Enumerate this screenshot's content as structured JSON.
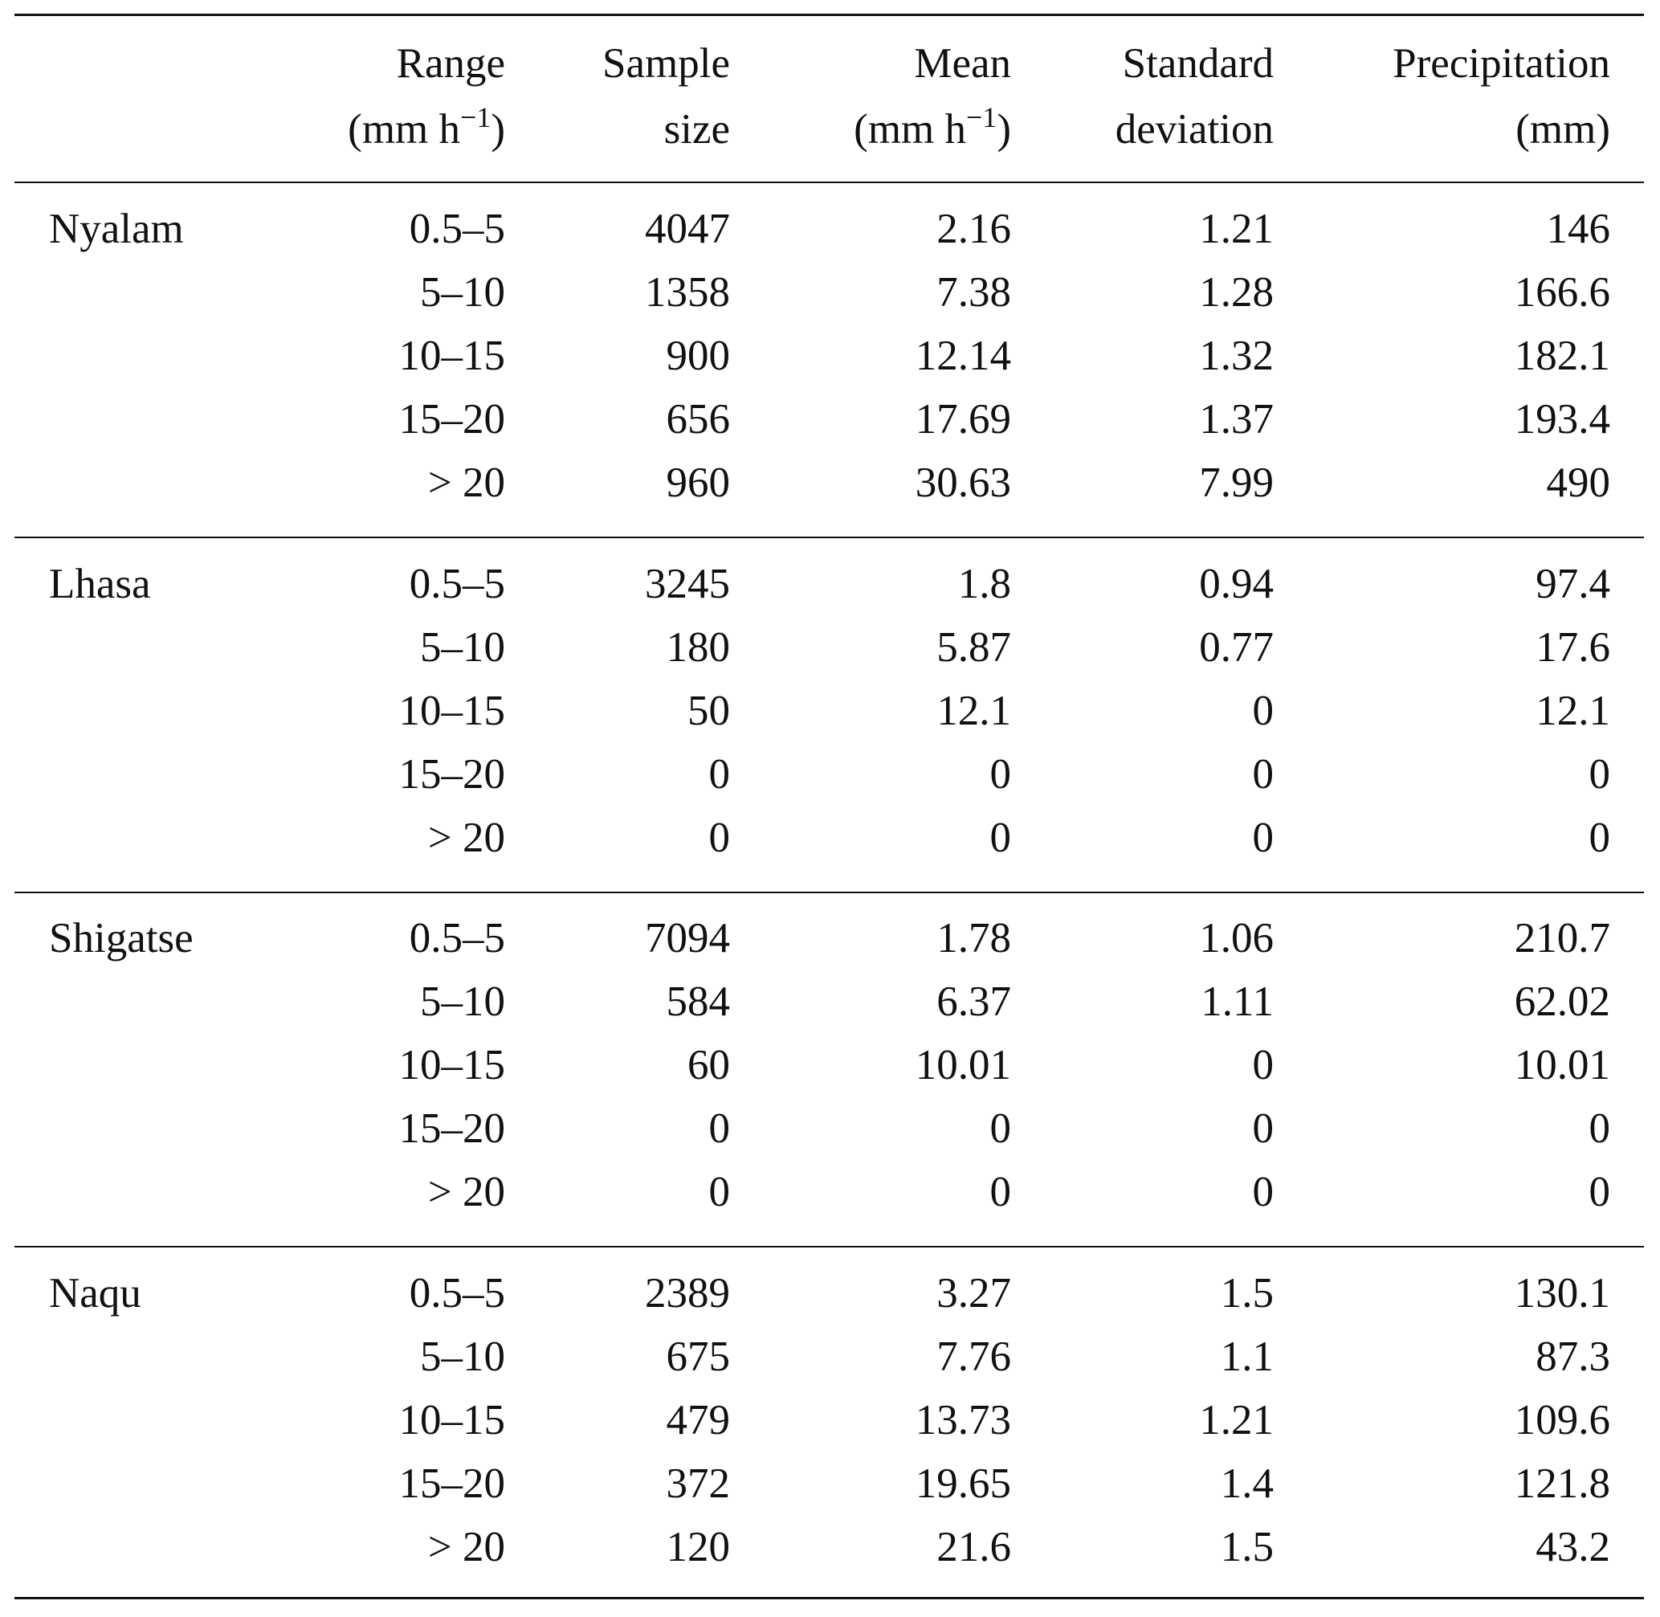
{
  "table": {
    "columns": [
      {
        "lines": [
          [
            {
              "text": "Range"
            }
          ],
          [
            {
              "text": "(mm h"
            },
            {
              "text": "−1",
              "sup": true
            },
            {
              "text": ")"
            }
          ]
        ]
      },
      {
        "lines": [
          [
            {
              "text": "Sample"
            }
          ],
          [
            {
              "text": "size"
            }
          ]
        ]
      },
      {
        "lines": [
          [
            {
              "text": "Mean"
            }
          ],
          [
            {
              "text": "(mm h"
            },
            {
              "text": "−1",
              "sup": true
            },
            {
              "text": ")"
            }
          ]
        ]
      },
      {
        "lines": [
          [
            {
              "text": "Standard"
            }
          ],
          [
            {
              "text": "deviation"
            }
          ]
        ]
      },
      {
        "lines": [
          [
            {
              "text": "Precipitation"
            }
          ],
          [
            {
              "text": "(mm)"
            }
          ]
        ]
      }
    ],
    "groups": [
      {
        "name": "Nyalam",
        "rows": [
          [
            "0.5–5",
            "4047",
            "2.16",
            "1.21",
            "146"
          ],
          [
            "5–10",
            "1358",
            "7.38",
            "1.28",
            "166.6"
          ],
          [
            "10–15",
            "900",
            "12.14",
            "1.32",
            "182.1"
          ],
          [
            "15–20",
            "656",
            "17.69",
            "1.37",
            "193.4"
          ],
          [
            "> 20",
            "960",
            "30.63",
            "7.99",
            "490"
          ]
        ]
      },
      {
        "name": "Lhasa",
        "rows": [
          [
            "0.5–5",
            "3245",
            "1.8",
            "0.94",
            "97.4"
          ],
          [
            "5–10",
            "180",
            "5.87",
            "0.77",
            "17.6"
          ],
          [
            "10–15",
            "50",
            "12.1",
            "0",
            "12.1"
          ],
          [
            "15–20",
            "0",
            "0",
            "0",
            "0"
          ],
          [
            "> 20",
            "0",
            "0",
            "0",
            "0"
          ]
        ]
      },
      {
        "name": "Shigatse",
        "rows": [
          [
            "0.5–5",
            "7094",
            "1.78",
            "1.06",
            "210.7"
          ],
          [
            "5–10",
            "584",
            "6.37",
            "1.11",
            "62.02"
          ],
          [
            "10–15",
            "60",
            "10.01",
            "0",
            "10.01"
          ],
          [
            "15–20",
            "0",
            "0",
            "0",
            "0"
          ],
          [
            "> 20",
            "0",
            "0",
            "0",
            "0"
          ]
        ]
      },
      {
        "name": "Naqu",
        "rows": [
          [
            "0.5–5",
            "2389",
            "3.27",
            "1.5",
            "130.1"
          ],
          [
            "5–10",
            "675",
            "7.76",
            "1.1",
            "87.3"
          ],
          [
            "10–15",
            "479",
            "13.73",
            "1.21",
            "109.6"
          ],
          [
            "15–20",
            "372",
            "19.65",
            "1.4",
            "121.8"
          ],
          [
            "> 20",
            "120",
            "21.6",
            "1.5",
            "43.2"
          ]
        ]
      }
    ]
  }
}
